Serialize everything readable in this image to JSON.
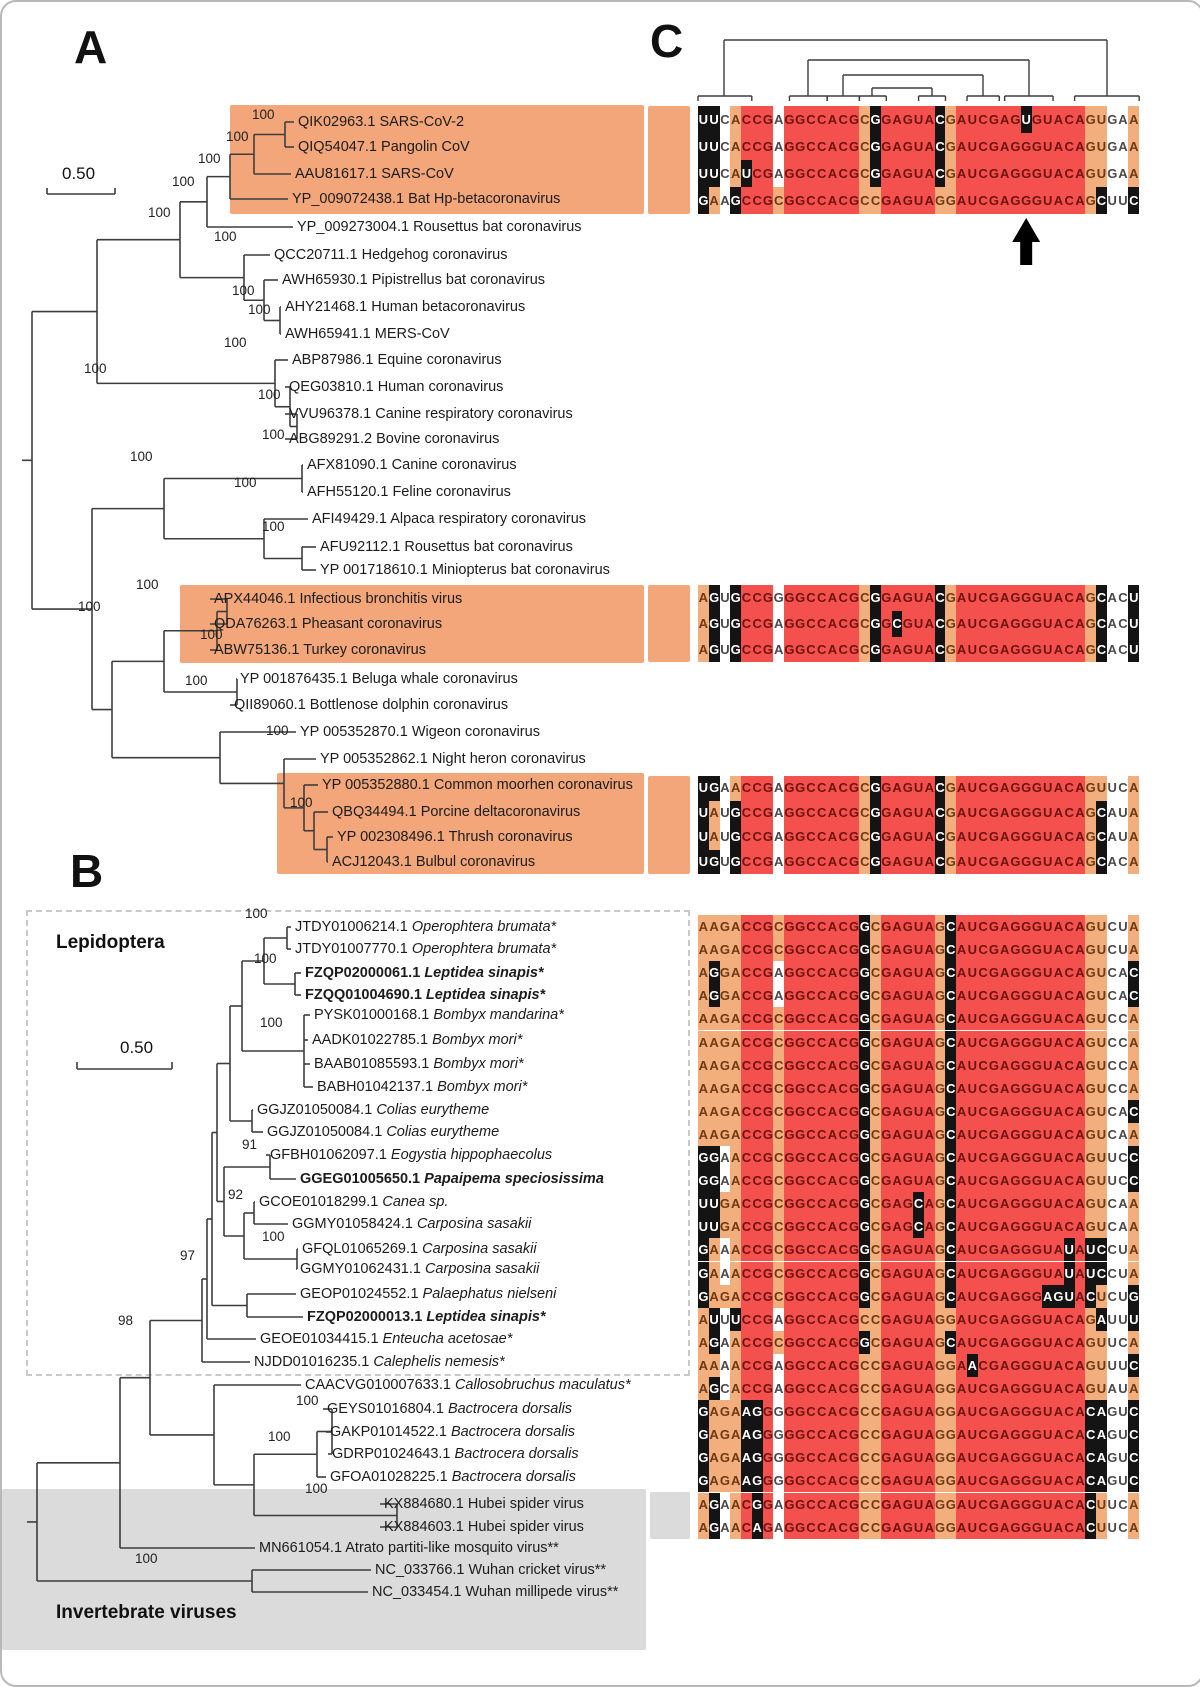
{
  "panelA": {
    "label": "A",
    "scale_bar": "0.50",
    "taxa": [
      {
        "acc": "QIK02963.1",
        "species": "SARS-CoV-2"
      },
      {
        "acc": "QIQ54047.1",
        "species": "Pangolin CoV"
      },
      {
        "acc": "AAU81617.1",
        "species": "SARS-CoV"
      },
      {
        "acc": "YP_009072438.1",
        "species": "Bat Hp-betacoronavirus"
      },
      {
        "acc": "YP_009273004.1",
        "species": "Rousettus bat coronavirus"
      },
      {
        "acc": "QCC20711.1",
        "species": "Hedgehog coronavirus"
      },
      {
        "acc": "AWH65930.1",
        "species": "Pipistrellus bat coronavirus"
      },
      {
        "acc": "AHY21468.1",
        "species": "Human betacoronavirus"
      },
      {
        "acc": "AWH65941.1",
        "species": "MERS-CoV"
      },
      {
        "acc": "ABP87986.1",
        "species": "Equine coronavirus"
      },
      {
        "acc": "QEG03810.1",
        "species": "Human coronavirus"
      },
      {
        "acc": "VVU96378.1",
        "species": "Canine respiratory coronavirus"
      },
      {
        "acc": "ABG89291.2",
        "species": "Bovine coronavirus"
      },
      {
        "acc": "AFX81090.1",
        "species": "Canine coronavirus"
      },
      {
        "acc": "AFH55120.1",
        "species": "Feline coronavirus"
      },
      {
        "acc": "AFI49429.1",
        "species": "Alpaca respiratory coronavirus"
      },
      {
        "acc": "AFU92112.1",
        "species": "Rousettus bat coronavirus"
      },
      {
        "acc": "YP 001718610.1",
        "species": "Miniopterus bat coronavirus"
      },
      {
        "acc": "APX44046.1",
        "species": "Infectious bronchitis virus"
      },
      {
        "acc": "QDA76263.1",
        "species": "Pheasant coronavirus"
      },
      {
        "acc": "ABW75136.1",
        "species": "Turkey coronavirus"
      },
      {
        "acc": "YP 001876435.1",
        "species": "Beluga whale coronavirus"
      },
      {
        "acc": "QII89060.1",
        "species": "Bottlenose dolphin coronavirus"
      },
      {
        "acc": "YP 005352870.1",
        "species": "Wigeon coronavirus"
      },
      {
        "acc": "YP 005352862.1",
        "species": "Night heron coronavirus"
      },
      {
        "acc": "YP 005352880.1",
        "species": "Common moorhen coronavirus"
      },
      {
        "acc": "QBQ34494.1",
        "species": "Porcine deltacoronavirus"
      },
      {
        "acc": "YP 002308496.1",
        "species": "Thrush coronavirus"
      },
      {
        "acc": "ACJ12043.1",
        "species": "Bulbul coronavirus"
      }
    ],
    "bootstraps": [
      "100",
      "100",
      "100",
      "100",
      "100",
      "100",
      "100",
      "100",
      "100",
      "100",
      "100",
      "100",
      "100",
      "100",
      "100",
      "100",
      "100",
      "100",
      "100",
      "100",
      "100"
    ]
  },
  "panelB": {
    "label": "B",
    "scale_bar": "0.50",
    "clade_label": "Lepidoptera",
    "shaded_label": "Invertebrate viruses",
    "taxa": [
      {
        "acc": "JTDY01006214.1",
        "species": "Operophtera brumata*",
        "italic": true,
        "bold": false
      },
      {
        "acc": "JTDY01007770.1",
        "species": "Operophtera brumata*",
        "italic": true,
        "bold": false
      },
      {
        "acc": "FZQP02000061.1",
        "species": "Leptidea sinapis*",
        "italic": true,
        "bold": true
      },
      {
        "acc": "FZQQ01004690.1",
        "species": "Leptidea sinapis*",
        "italic": true,
        "bold": true
      },
      {
        "acc": "PYSK01000168.1",
        "species": "Bombyx mandarina*",
        "italic": true,
        "bold": false
      },
      {
        "acc": "AADK01022785.1",
        "species": "Bombyx mori*",
        "italic": true,
        "bold": false
      },
      {
        "acc": "BAAB01085593.1",
        "species": "Bombyx mori*",
        "italic": true,
        "bold": false
      },
      {
        "acc": "BABH01042137.1",
        "species": "Bombyx mori*",
        "italic": true,
        "bold": false
      },
      {
        "acc": "GGJZ01050084.1",
        "species": "Colias eurytheme",
        "italic": true,
        "bold": false
      },
      {
        "acc": "GGJZ01050084.1",
        "species": "Colias eurytheme",
        "italic": true,
        "bold": false
      },
      {
        "acc": "GFBH01062097.1",
        "species": "Eogystia hippophaecolus",
        "italic": true,
        "bold": false
      },
      {
        "acc": "GGEG01005650.1",
        "species": "Papaipema speciosissima",
        "italic": true,
        "bold": true
      },
      {
        "acc": "GCOE01018299.1",
        "species": "Canea sp.",
        "italic": true,
        "bold": false
      },
      {
        "acc": "GGMY01058424.1",
        "species": "Carposina sasakii",
        "italic": true,
        "bold": false
      },
      {
        "acc": "GFQL01065269.1",
        "species": "Carposina sasakii",
        "italic": true,
        "bold": false
      },
      {
        "acc": "GGMY01062431.1",
        "species": "Carposina sasakii",
        "italic": true,
        "bold": false
      },
      {
        "acc": "GEOP01024552.1",
        "species": "Palaephatus nielseni",
        "italic": true,
        "bold": false
      },
      {
        "acc": "FZQP02000013.1",
        "species": "Leptidea sinapis*",
        "italic": true,
        "bold": true
      },
      {
        "acc": "GEOE01034415.1",
        "species": "Enteucha acetosae*",
        "italic": true,
        "bold": false
      },
      {
        "acc": "NJDD01016235.1",
        "species": "Calephelis nemesis*",
        "italic": true,
        "bold": false
      },
      {
        "acc": "CAACVG010007633.1",
        "species": "Callosobruchus maculatus*",
        "italic": true,
        "bold": false
      },
      {
        "acc": "GEYS01016804.1",
        "species": "Bactrocera dorsalis",
        "italic": true,
        "bold": false
      },
      {
        "acc": "GAKP01014522.1",
        "species": "Bactrocera dorsalis",
        "italic": true,
        "bold": false
      },
      {
        "acc": "GDRP01024643.1",
        "species": "Bactrocera dorsalis",
        "italic": true,
        "bold": false
      },
      {
        "acc": "GFOA01028225.1",
        "species": "Bactrocera dorsalis",
        "italic": true,
        "bold": false
      },
      {
        "acc": "KX884680.1",
        "species": "Hubei spider virus",
        "italic": false,
        "bold": false
      },
      {
        "acc": "KX884603.1",
        "species": "Hubei spider virus",
        "italic": false,
        "bold": false
      },
      {
        "acc": "MN661054.1",
        "species": "Atrato partiti-like mosquito virus**",
        "italic": false,
        "bold": false
      },
      {
        "acc": "NC_033766.1",
        "species": "Wuhan cricket virus**",
        "italic": false,
        "bold": false
      },
      {
        "acc": "NC_033454.1",
        "species": "Wuhan millipede virus**",
        "italic": false,
        "bold": false
      }
    ],
    "bootstraps": [
      "100",
      "100",
      "100",
      "91",
      "92",
      "100",
      "97",
      "98",
      "100",
      "100",
      "100",
      "100"
    ]
  },
  "panelC": {
    "label": "C"
  },
  "alignment": {
    "length": 41,
    "arrow_column": 31,
    "colors": {
      "conserved_red": "#F4514E",
      "semi_orange": "#F2AE7C",
      "mismatch_black": "#141414",
      "highlight_orange": "#F2A679",
      "shaded_gray": "#DBDBDB",
      "letter_on_red": "#6E1410",
      "letter_on_orange": "#6E3A14",
      "letter_on_black": "#FFFFFF",
      "letter_on_white": "#4A4A4A"
    },
    "blocks": [
      {
        "name": "sarbecovirus-block",
        "highlight": "orange",
        "rows": [
          "UUCACCGAGGCCACGCGGAGUACGAUCGAGUGUACAGUGAA",
          "UUCACCGAGGCCACGCGGAGUACGAUCGAGGGUACAGUGAA",
          "UUCAUCGAGGCCACGCGGAGUACGAUCGAGGGUACAGUGAA",
          "GAAGCCGCGGCCACGCCGAGUAGGAUCGAGGGUACAGCUUC"
        ]
      },
      {
        "name": "gammacoronavirus-block",
        "highlight": "orange",
        "rows": [
          "AGUGCCGGGGCCACGCGGAGUACGAUCGAGGGUACAGCACU",
          "AGUGCCGAGGCCACGCGGCGUACGAUCGAGGGUACAGCACU",
          "AGUGCCGAGGCCACGCGGAGUACGAUCGAGGGUACAGCACU"
        ]
      },
      {
        "name": "deltacoronavirus-block",
        "highlight": "orange",
        "rows": [
          "UGAACCGAGGCCACGCGGAGUACGAUCGAGGGUACAGUUCA",
          "UAUGCCGAGGCCACGCGGAGUACGAUCGAGGGUACAGCAUA",
          "UAUGCCGAGGCCACGCGGAGUACGAUCGAGGGUACAGCAUA",
          "UGUGCCGAGGCCACGCGGAGUACGAUCGAGGGUACAGCACA"
        ]
      },
      {
        "name": "invertebrate-block",
        "highlight": "none",
        "rows": [
          "AAGACCGCGGCCACGGCGAGUAGCAUCGAGGGUACAGUCUA",
          "AAGACCGCGGCCACGGCGAGUAGCAUCGAGGGUACAGUCUA",
          "AGGACCGAGGCCACGGCGAGUAGCAUCGAGGGUACAGUCAC",
          "AGGACCGAGGCCACGGCGAGUAGCAUCGAGGGUACAGUCAC",
          "AAGACCGCGGCCACGGCGAGUAGCAUCGAGGGUACAGUCCA",
          "AAGACCGCGGCCACGGCGAGUAGCAUCGAGGGUACAGUCCA",
          "AAGACCGCGGCCACGGCGAGUAGCAUCGAGGGUACAGUCCA",
          "AAGACCGCGGCCACGGCGAGUAGCAUCGAGGGUACAGUCCA",
          "AAGACCGCGGCCACGGCGAGUAGCAUCGAGGGUACAGUCAC",
          "AAGACCGCGGCCACGGCGAGUAGCAUCGAGGGUACAGUCAA",
          "GGAACCGCGGCCACGGCGAGUAGCAUCGAGGGUACAGUUCC",
          "GGAACCGCGGCCACGGCGAGUAGCAUCGAGGGUACAGUUCC",
          "UUGACCGCGGCCACGGCGAGCAGCAUCGAGGGUACAGUCAA",
          "UUGACCGCGGCCACGGCGAGCAGCAUCGAGGGUACAGUCAA",
          "GAAACCGCGGCCACGGCGAGUAGCAUCGAGGGUAUAUCCUA",
          "GAAACCGCGGCCACGGCGAGUAGCAUCGAGGGUAUAUCCUA",
          "GAGACCGCGGCCACGGCGAGUAGCAUCGAGGGAGUACUCUG",
          "AUUUCCGAGGCCACGCCGAGUAGGAUCGAGGGUACAGAUUU",
          "AGAACCGCGGCCACGGCGAGUAGCAUCGAGGGUACAGUUCA",
          "AAAACCGAGGCCACGCCGAGUAGGAACGAGGGUACAGUUUC",
          "AGCACCGAGGCCACGCCGAGUAGGAUCGAGGGUACAGUAUA",
          "GAGAAGGGGGCCACGCCGAGUAGGAUCGAGGGUACACAGUC",
          "GAGAAGGGGGCCACGCCGAGUAGGAUCGAGGGUACACAGUC",
          "GAGAAGGGGGCCACGCCGAGUAGGAUCGAGGGUACACAGUC",
          "GAGAAGGGGGCCACGCCGAGUAGGAUCGAGGGUACACAGUC",
          "AGAACGGAGGCCACGCCGAGUAGGAUCGAGGGUACACUUCA",
          "AGAACAGAGGCCACGCCGAGUAGGAUCGAGGGUACACUUCA"
        ]
      }
    ]
  }
}
